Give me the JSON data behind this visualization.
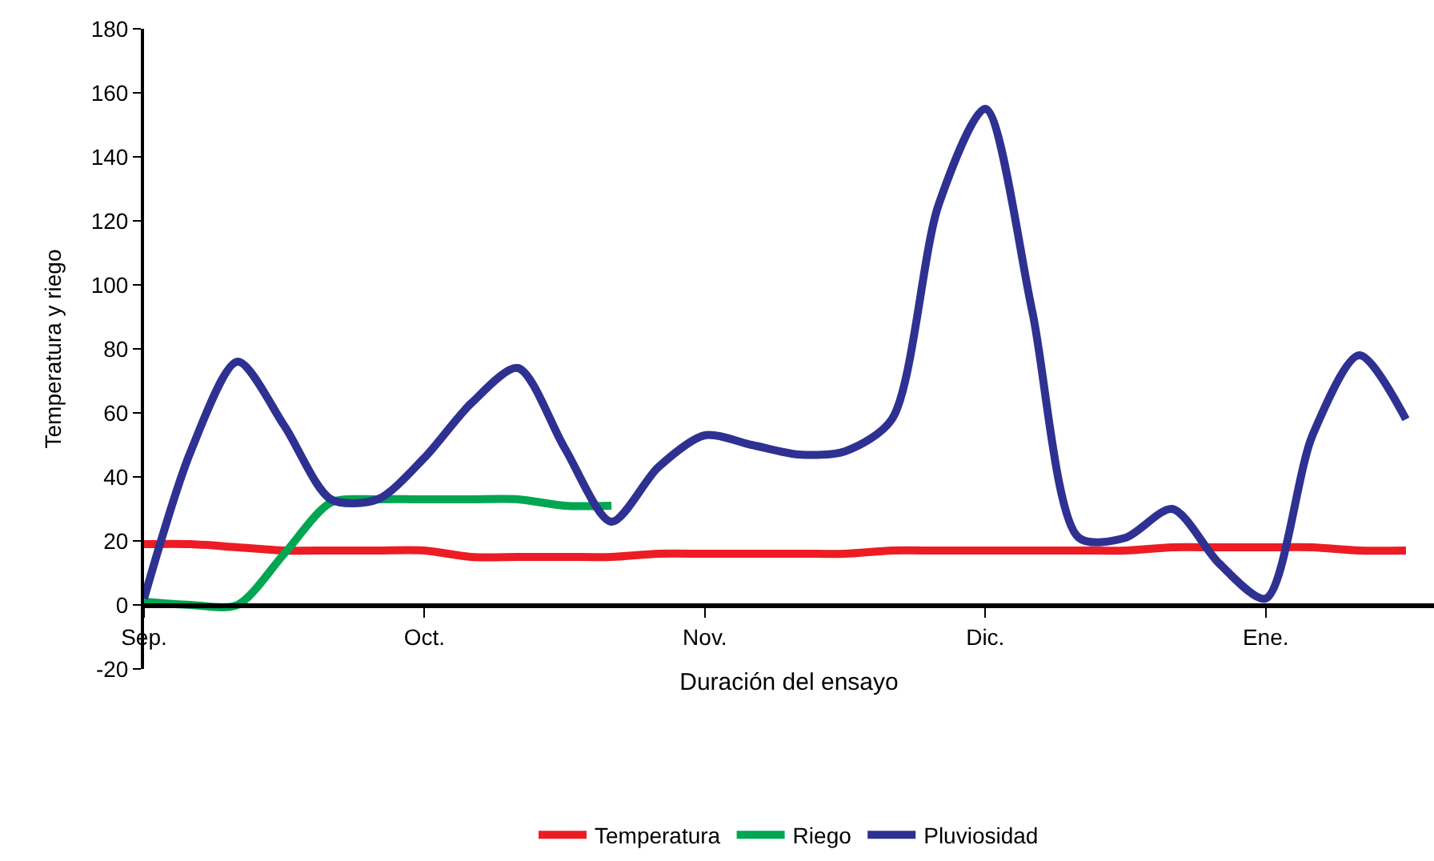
{
  "chart_data": {
    "type": "line",
    "xlabel": "Duración del ensayo",
    "ylabel": "Temperatura y riego",
    "categories": [
      "Sep.",
      null,
      null,
      null,
      null,
      null,
      "Oct.",
      null,
      null,
      null,
      null,
      null,
      "Nov.",
      null,
      null,
      null,
      null,
      null,
      "Dic.",
      null,
      null,
      null,
      null,
      null,
      "Ene.",
      null,
      null,
      null
    ],
    "ylim": [
      -20,
      180
    ],
    "yticks": [
      -20,
      0,
      20,
      40,
      60,
      80,
      100,
      120,
      140,
      160,
      180
    ],
    "grid": false,
    "legend": "bottom",
    "marker": "none",
    "line_style": "solid",
    "series": [
      {
        "name": "Temperatura",
        "color": "#ed1c24",
        "values": [
          19,
          19,
          18,
          17,
          17,
          17,
          17,
          15,
          15,
          15,
          15,
          16,
          16,
          16,
          16,
          16,
          17,
          17,
          17,
          17,
          17,
          17,
          18,
          18,
          18,
          18,
          17,
          17
        ]
      },
      {
        "name": "Riego",
        "color": "#00a651",
        "values": [
          1,
          0,
          0,
          16,
          32,
          33,
          33,
          33,
          33,
          31,
          31,
          null,
          null,
          null,
          null,
          null,
          null,
          null,
          null,
          null,
          null,
          null,
          null,
          null,
          null,
          null,
          null,
          null
        ]
      },
      {
        "name": "Pluviosidad",
        "color": "#2e3192",
        "values": [
          2,
          48,
          76,
          56,
          33,
          33,
          46,
          63,
          74,
          49,
          26,
          43,
          53,
          50,
          47,
          48,
          58,
          125,
          155,
          92,
          21,
          21,
          30,
          13,
          2,
          53,
          78,
          58
        ]
      }
    ]
  }
}
